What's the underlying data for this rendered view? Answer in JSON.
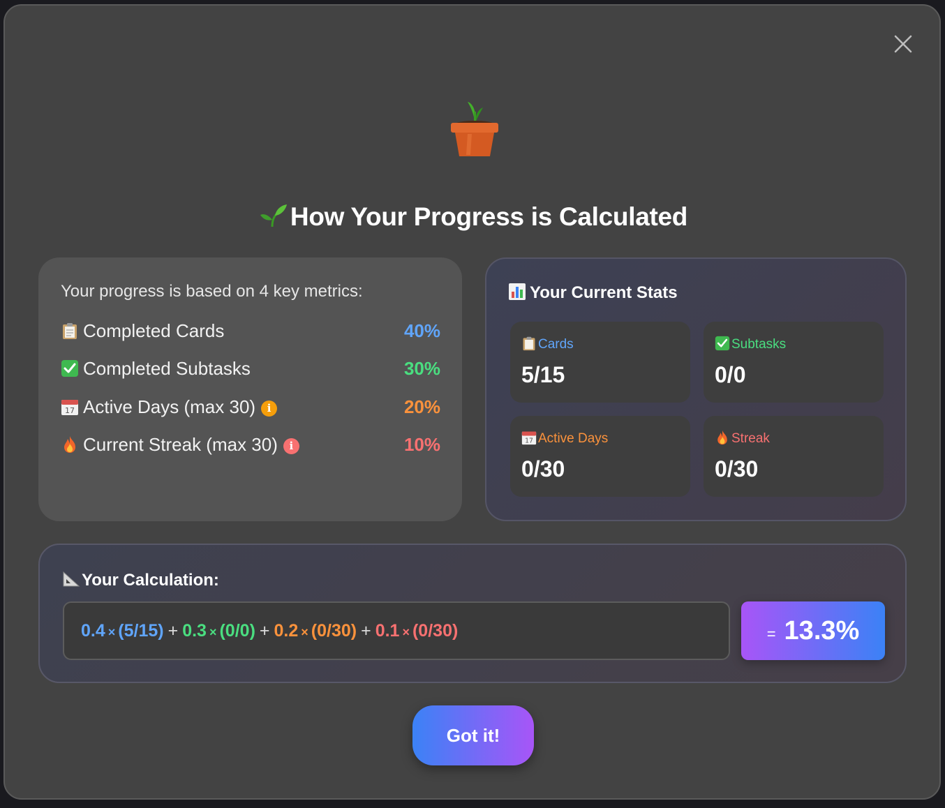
{
  "modal": {
    "title": "How Your Progress is Calculated",
    "button_label": "Got it!"
  },
  "metrics": {
    "intro": "Your progress is based on 4 key metrics:",
    "items": [
      {
        "icon": "clipboard-icon",
        "label": "Completed Cards",
        "percent": "40%",
        "color": "#60a5fa",
        "has_info": false
      },
      {
        "icon": "check-box-icon",
        "label": "Completed Subtasks",
        "percent": "30%",
        "color": "#4ade80",
        "has_info": false
      },
      {
        "icon": "calendar-icon",
        "label": "Active Days (max 30)",
        "percent": "20%",
        "color": "#fb923c",
        "has_info": true,
        "info_color": "#f59e0b"
      },
      {
        "icon": "fire-icon",
        "label": "Current Streak (max 30)",
        "percent": "10%",
        "color": "#f87171",
        "has_info": true,
        "info_color": "#f87171"
      }
    ]
  },
  "stats": {
    "title": "Your Current Stats",
    "items": [
      {
        "icon": "clipboard-icon",
        "label": "Cards",
        "value": "5/15",
        "color": "#60a5fa"
      },
      {
        "icon": "check-box-icon",
        "label": "Subtasks",
        "value": "0/0",
        "color": "#4ade80"
      },
      {
        "icon": "calendar-icon",
        "label": "Active Days",
        "value": "0/30",
        "color": "#fb923c"
      },
      {
        "icon": "fire-icon",
        "label": "Streak",
        "value": "0/30",
        "color": "#f87171"
      }
    ]
  },
  "calculation": {
    "title": "Your Calculation:",
    "terms": [
      {
        "weight": "0.4",
        "fraction": "(5/15)",
        "color": "#60a5fa"
      },
      {
        "weight": "0.3",
        "fraction": "(0/0)",
        "color": "#4ade80"
      },
      {
        "weight": "0.2",
        "fraction": "(0/30)",
        "color": "#fb923c"
      },
      {
        "weight": "0.1",
        "fraction": "(0/30)",
        "color": "#f87171"
      }
    ],
    "times_symbol": "×",
    "plus_symbol": "+",
    "equals_symbol": "=",
    "result": "13.3%"
  }
}
